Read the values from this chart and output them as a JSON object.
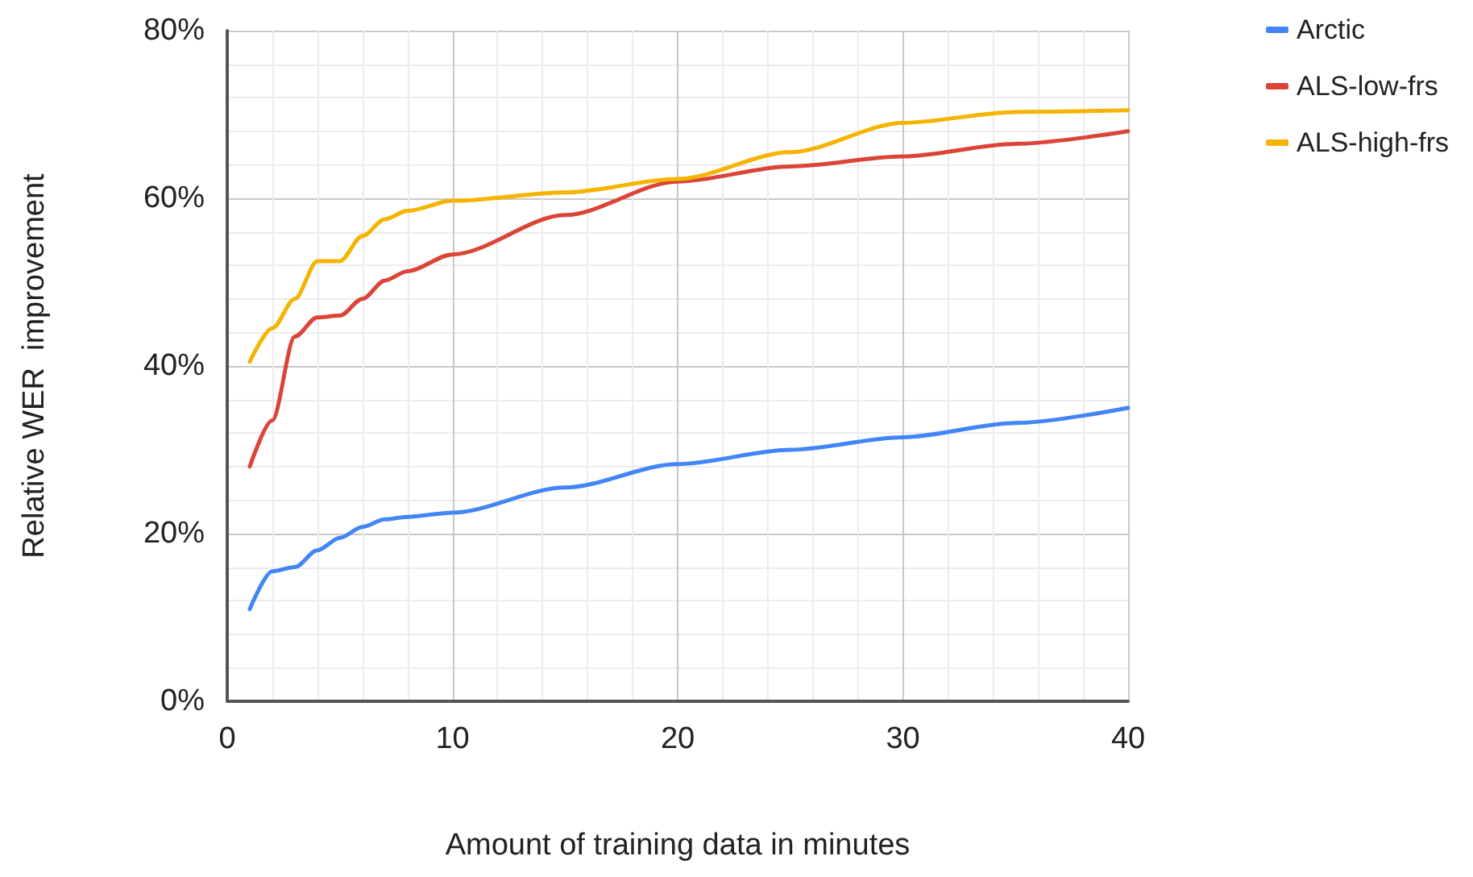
{
  "chart_data": {
    "type": "line",
    "xlabel": "Amount of training data in minutes",
    "ylabel": "Relative WER  improvement",
    "x": [
      1,
      2,
      3,
      4,
      5,
      6,
      7,
      8,
      10,
      15,
      20,
      25,
      30,
      35,
      40
    ],
    "series": [
      {
        "name": "Arctic",
        "color": "#4285f4",
        "values": [
          11,
          15.5,
          16,
          18,
          19.5,
          20.8,
          21.7,
          22,
          22.5,
          25.5,
          28.3,
          30,
          31.5,
          33.2,
          35
        ]
      },
      {
        "name": "ALS-low-frs",
        "color": "#db4437",
        "values": [
          28,
          33.5,
          43.5,
          45.8,
          46,
          48,
          50.2,
          51.3,
          53.3,
          58,
          62,
          63.8,
          65,
          66.5,
          68
        ]
      },
      {
        "name": "ALS-high-frs",
        "color": "#f4b400",
        "values": [
          40.5,
          44.5,
          48,
          52.5,
          52.5,
          55.5,
          57.5,
          58.5,
          59.7,
          60.7,
          62.3,
          65.5,
          69,
          70.3,
          70.5
        ]
      }
    ],
    "xlim": [
      0,
      40
    ],
    "xticks": [
      0,
      10,
      20,
      30,
      40
    ],
    "ylim": [
      0,
      80
    ],
    "yticks": [
      {
        "value": 0,
        "label": "0%"
      },
      {
        "value": 20,
        "label": "20%"
      },
      {
        "value": 40,
        "label": "40%"
      },
      {
        "value": 60,
        "label": "60%"
      },
      {
        "value": 80,
        "label": "80%"
      }
    ],
    "grid": true,
    "legend": "top right",
    "marker": "none",
    "line_style": "solid"
  }
}
